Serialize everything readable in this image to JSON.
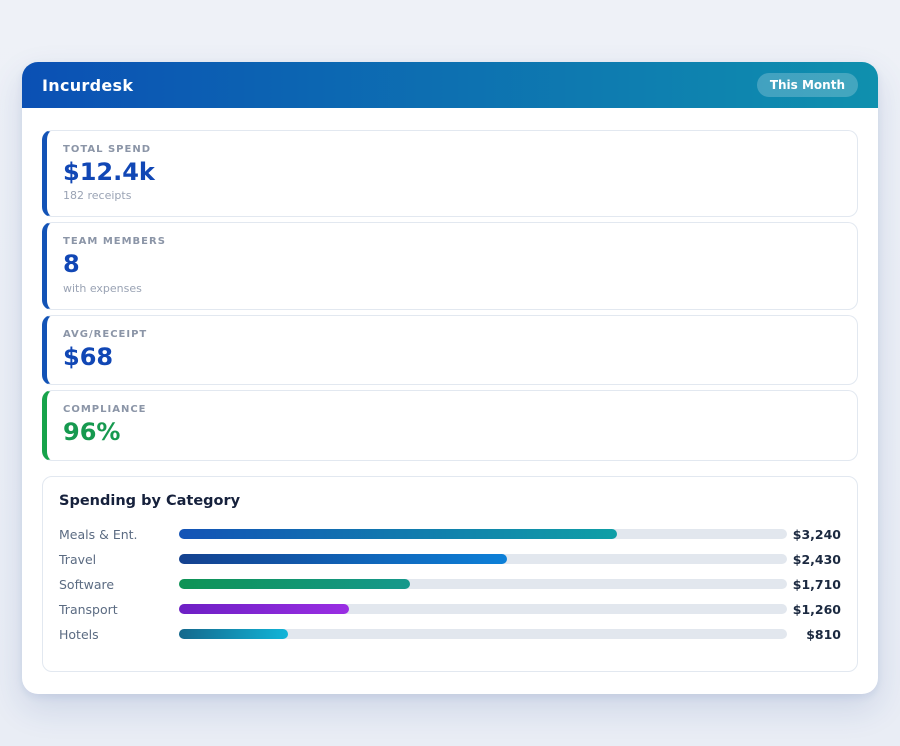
{
  "colors": {
    "page_bg": "#eef1f7",
    "header_from": "#0b50b4",
    "header_to": "#0f90ae",
    "accent_blue": "#1353b6",
    "accent_green": "#16a34a",
    "bar_track": "#e2e7ee"
  },
  "header": {
    "title": "Incurdesk",
    "badge": "This Month"
  },
  "stats": [
    {
      "label": "TOTAL SPEND",
      "value": "$12.4k",
      "sub": "182 receipts",
      "accent": "#1353b6",
      "value_color": "#1147b5"
    },
    {
      "label": "TEAM MEMBERS",
      "value": "8",
      "sub": "with expenses",
      "accent": "#1353b6",
      "value_color": "#1147b5"
    },
    {
      "label": "AVG/RECEIPT",
      "value": "$68",
      "accent": "#1353b6",
      "value_color": "#1147b5"
    },
    {
      "label": "COMPLIANCE",
      "value": "96%",
      "accent": "#16a34a",
      "value_color": "#16994f"
    }
  ],
  "spending": {
    "title": "Spending by Category",
    "axis_max": 4500,
    "rows": [
      {
        "label": "Meals & Ent.",
        "value": 3240,
        "value_label": "$3,240",
        "pct": 72,
        "color_from": "#1353b6",
        "color_to": "#0f9fa6"
      },
      {
        "label": "Travel",
        "value": 2430,
        "value_label": "$2,430",
        "pct": 54,
        "color_from": "#14418f",
        "color_to": "#0d80d8"
      },
      {
        "label": "Software",
        "value": 1710,
        "value_label": "$1,710",
        "pct": 38,
        "color_from": "#0e9355",
        "color_to": "#16988c"
      },
      {
        "label": "Transport",
        "value": 1260,
        "value_label": "$1,260",
        "pct": 28,
        "color_from": "#6d1fc4",
        "color_to": "#9a2ee3"
      },
      {
        "label": "Hotels",
        "value": 810,
        "value_label": "$810",
        "pct": 18,
        "color_from": "#14688c",
        "color_to": "#12b5d8"
      }
    ]
  },
  "chart_data": {
    "type": "bar",
    "orientation": "horizontal",
    "title": "Spending by Category",
    "categories": [
      "Meals & Ent.",
      "Travel",
      "Software",
      "Transport",
      "Hotels"
    ],
    "values": [
      3240,
      2430,
      1710,
      1260,
      810
    ],
    "value_labels": [
      "$3,240",
      "$2,430",
      "$1,710",
      "$1,260",
      "$810"
    ],
    "xlim": [
      0,
      4500
    ],
    "grid": false,
    "legend": false
  }
}
